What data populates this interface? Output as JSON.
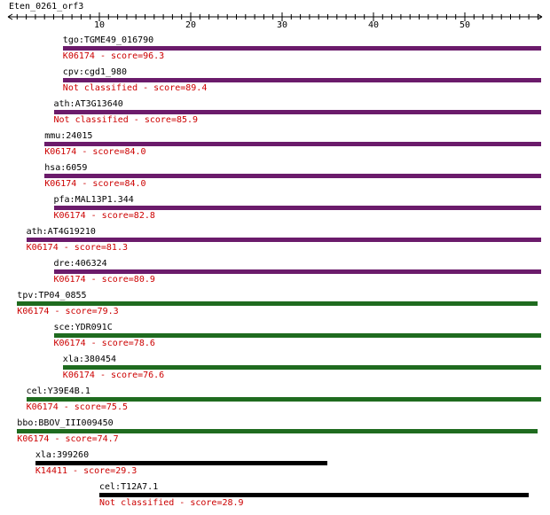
{
  "ruler": {
    "title": "Eten_0261_orf3",
    "ticks": [
      "10",
      "20",
      "30",
      "40",
      "50"
    ]
  },
  "colors": {
    "purple": "#6b1b6b",
    "green": "#1f6b1f",
    "black": "#000000",
    "annotation": "#cc0000"
  },
  "hits": [
    {
      "gene": "tgo:TGME49_016790",
      "annotation": "K06174 - score=96.3",
      "color": "purple",
      "start": 6,
      "end": 60
    },
    {
      "gene": "cpv:cgd1_980",
      "annotation": "Not classified - score=89.4",
      "color": "purple",
      "start": 6,
      "end": 59
    },
    {
      "gene": "ath:AT3G13640",
      "annotation": "Not classified - score=85.9",
      "color": "purple",
      "start": 5,
      "end": 59
    },
    {
      "gene": "mmu:24015",
      "annotation": "K06174 - score=84.0",
      "color": "purple",
      "start": 4,
      "end": 59
    },
    {
      "gene": "hsa:6059",
      "annotation": "K06174 - score=84.0",
      "color": "purple",
      "start": 4,
      "end": 59
    },
    {
      "gene": "pfa:MAL13P1.344",
      "annotation": "K06174 - score=82.8",
      "color": "purple",
      "start": 5,
      "end": 59
    },
    {
      "gene": "ath:AT4G19210",
      "annotation": "K06174 - score=81.3",
      "color": "purple",
      "start": 2,
      "end": 59
    },
    {
      "gene": "dre:406324",
      "annotation": "K06174 - score=80.9",
      "color": "purple",
      "start": 5,
      "end": 59
    },
    {
      "gene": "tpv:TP04_0855",
      "annotation": "K06174 - score=79.3",
      "color": "green",
      "start": 1,
      "end": 58
    },
    {
      "gene": "sce:YDR091C",
      "annotation": "K06174 - score=78.6",
      "color": "green",
      "start": 5,
      "end": 60
    },
    {
      "gene": "xla:380454",
      "annotation": "K06174 - score=76.6",
      "color": "green",
      "start": 6,
      "end": 59
    },
    {
      "gene": "cel:Y39E4B.1",
      "annotation": "K06174 - score=75.5",
      "color": "green",
      "start": 2,
      "end": 59
    },
    {
      "gene": "bbo:BBOV_III009450",
      "annotation": "K06174 - score=74.7",
      "color": "green",
      "start": 1,
      "end": 58
    },
    {
      "gene": "xla:399260",
      "annotation": "K14411 - score=29.3",
      "color": "black",
      "start": 3,
      "end": 35
    },
    {
      "gene": "cel:T12A7.1",
      "annotation": "Not classified - score=28.9",
      "color": "black",
      "start": 10,
      "end": 57
    }
  ]
}
